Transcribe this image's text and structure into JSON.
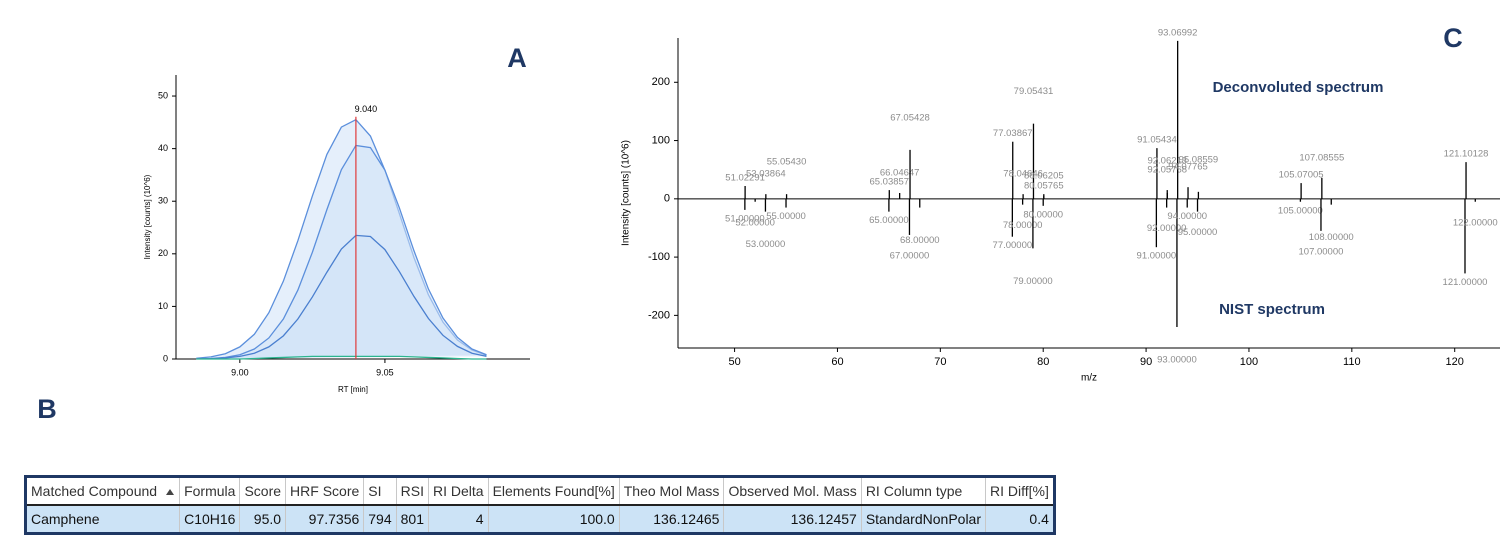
{
  "panels": {
    "a": "A",
    "b": "B",
    "c": "C"
  },
  "chart_data": [
    {
      "type": "area",
      "x_label": "RT [min]",
      "y_label": "Intensity [counts] (10^6)",
      "x": [
        8.985,
        8.99,
        8.995,
        9.0,
        9.005,
        9.01,
        9.015,
        9.02,
        9.025,
        9.03,
        9.035,
        9.04,
        9.045,
        9.05,
        9.055,
        9.06,
        9.065,
        9.07,
        9.075,
        9.08,
        9.085
      ],
      "series": [
        {
          "color": "#5b8fdc",
          "values": [
            0.15,
            0.4,
            1.0,
            2.3,
            4.7,
            8.8,
            14.8,
            22.5,
            31.0,
            38.9,
            44.1,
            45.5,
            42.4,
            35.9,
            27.6,
            19.3,
            12.2,
            7.0,
            3.6,
            1.7,
            0.7
          ]
        },
        {
          "color": "#5b8fdc",
          "values": [
            0.05,
            0.1,
            0.3,
            0.8,
            1.9,
            4.0,
            7.6,
            13.1,
            20.3,
            28.4,
            36.0,
            40.6,
            40.2,
            35.9,
            28.7,
            20.6,
            13.3,
            7.8,
            4.1,
            1.9,
            0.8
          ]
        },
        {
          "color": "#4a7fcf",
          "values": [
            0.03,
            0.06,
            0.2,
            0.5,
            1.1,
            2.3,
            4.4,
            7.6,
            11.8,
            16.5,
            20.9,
            23.5,
            23.3,
            20.8,
            16.6,
            11.9,
            7.7,
            4.5,
            2.4,
            1.1,
            0.5
          ]
        },
        {
          "color": "#2bb58f",
          "values": [
            0,
            0,
            0,
            0,
            0.1,
            0.2,
            0.3,
            0.4,
            0.5,
            0.5,
            0.5,
            0.5,
            0.5,
            0.5,
            0.5,
            0.4,
            0.3,
            0.2,
            0.1,
            0,
            0
          ]
        }
      ],
      "fill": "#cfe1f8",
      "xlim": [
        8.978,
        9.1
      ],
      "ylim": [
        0,
        54
      ],
      "xticks": [
        {
          "value": 9.0,
          "label": "9.00"
        },
        {
          "value": 9.05,
          "label": "9.05"
        }
      ],
      "yticks": [
        0,
        10,
        20,
        30,
        40,
        50
      ],
      "peak": {
        "value": 9.04,
        "label": "9.040"
      },
      "peak_color": "#e03a3a"
    },
    {
      "type": "stem",
      "x_label": "m/z",
      "y_label": "Intensity [counts] (10^6)",
      "xlim": [
        44.5,
        124.5
      ],
      "ylim": [
        -256,
        276
      ],
      "xticks": [
        50,
        60,
        70,
        80,
        90,
        100,
        110,
        120
      ],
      "yticks": [
        -200,
        -100,
        0,
        100,
        200
      ],
      "label_color": "#8c8c8c",
      "series": [
        {
          "name": "Deconvoluted spectrum",
          "color": "#000000",
          "x": [
            51.02291,
            53.03864,
            55.0543,
            65.03857,
            66.04647,
            67.05428,
            77.03867,
            78.04646,
            79.05431,
            80.05765,
            80.06205,
            91.05434,
            92.05768,
            92.06213,
            93.06992,
            94.07765,
            95.08559,
            105.07005,
            107.08555,
            121.10128
          ],
          "x_labels": [
            "51.02291",
            "53.03864",
            "55.05430",
            "65.03857",
            "66.04647",
            "67.05428",
            "77.03867",
            "78.04646",
            "79.05431",
            "80.05765",
            "80.06205",
            "91.05434",
            "92.05768",
            "92.06213",
            "93.06992",
            "94.07765",
            "95.08559",
            "105.07005",
            "107.08555",
            "121.10128"
          ],
          "values": [
            22,
            8,
            8,
            15,
            10,
            84,
            98,
            8,
            129,
            8,
            5,
            87,
            15,
            10,
            271,
            20,
            12,
            27,
            36,
            63
          ]
        },
        {
          "name": "NIST spectrum",
          "color": "#000000",
          "x": [
            51,
            52,
            53,
            55,
            65,
            67,
            68,
            77,
            78,
            79,
            80,
            91,
            92,
            93,
            94,
            95,
            105,
            107,
            108,
            121,
            122
          ],
          "x_labels": [
            "51.00000",
            "52.00000",
            "53.00000",
            "55.00000",
            "65.00000",
            "67.00000",
            "68.00000",
            "77.00000",
            "78.00000",
            "79.00000",
            "80.00000",
            "91.00000",
            "92.00000",
            "93.00000",
            "94.00000",
            "95.00000",
            "105.00000",
            "107.00000",
            "108.00000",
            "121.00000",
            "122.00000"
          ],
          "values": [
            -19,
            -5,
            -22,
            -15,
            -22,
            -62,
            -15,
            -65,
            -10,
            -85,
            -12,
            -83,
            -15,
            -220,
            -15,
            -22,
            -5,
            -55,
            -10,
            -128,
            -5
          ]
        }
      ]
    }
  ],
  "table": {
    "header": [
      "Matched Compound",
      "Formula",
      "Score",
      "HRF Score",
      "SI",
      "RSI",
      "RI Delta",
      "Elements Found[%]",
      "Theo Mol Mass",
      "Observed Mol. Mass",
      "RI Column type",
      "RI Diff[%]"
    ],
    "rows": [
      [
        "Camphene",
        "C10H16",
        "95.0",
        "97.7356",
        "794",
        "801",
        "4",
        "100.0",
        "136.12465",
        "136.12457",
        "StandardNonPolar",
        "0.4"
      ]
    ]
  }
}
